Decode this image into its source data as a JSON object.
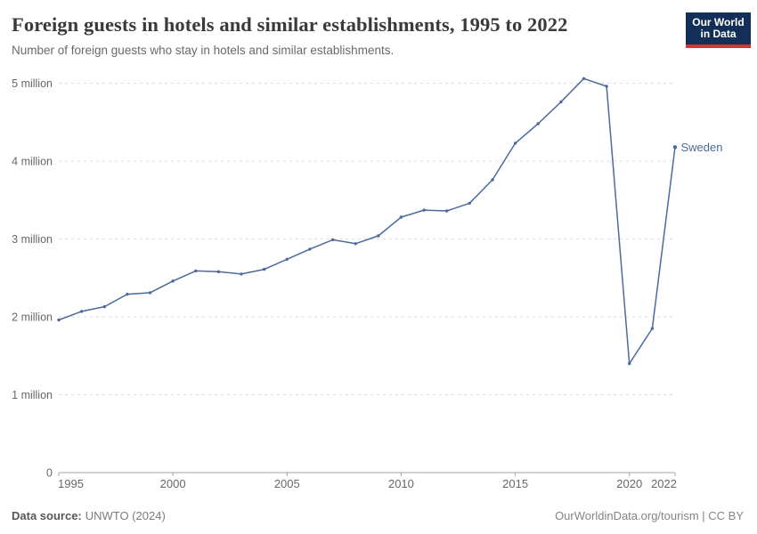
{
  "header": {
    "title": "Foreign guests in hotels and similar establishments, 1995 to 2022",
    "subtitle": "Number of foreign guests who stay in hotels and similar establishments."
  },
  "logo": {
    "line1": "Our World",
    "line2": "in Data",
    "bg_color": "#132f57",
    "accent_color": "#d5362a"
  },
  "footer": {
    "source_label": "Data source:",
    "source_value": "UNWTO (2024)",
    "credit": "OurWorldinData.org/tourism | CC BY"
  },
  "chart_data": {
    "type": "line",
    "title": "Foreign guests in hotels and similar establishments, 1995 to 2022",
    "subtitle": "Number of foreign guests who stay in hotels and similar establishments.",
    "xlabel": "",
    "ylabel": "",
    "xlim": [
      1995,
      2022
    ],
    "ylim_millions": [
      0,
      5.3
    ],
    "grid": "horizontal-dashed",
    "legend_position": "end-of-line-label",
    "x": [
      1995,
      1996,
      1997,
      1998,
      1999,
      2000,
      2001,
      2002,
      2003,
      2004,
      2005,
      2006,
      2007,
      2008,
      2009,
      2010,
      2011,
      2012,
      2013,
      2014,
      2015,
      2016,
      2017,
      2018,
      2019,
      2020,
      2021,
      2022
    ],
    "series": [
      {
        "name": "Sweden",
        "color": "#4C6A9C",
        "values_millions": [
          1.96,
          2.07,
          2.13,
          2.29,
          2.31,
          2.46,
          2.59,
          2.58,
          2.55,
          2.61,
          2.74,
          2.87,
          2.99,
          2.94,
          3.04,
          3.28,
          3.37,
          3.36,
          3.46,
          3.76,
          4.23,
          4.48,
          4.76,
          5.06,
          4.96,
          1.4,
          1.85,
          4.18
        ]
      }
    ],
    "x_ticks": [
      1995,
      2000,
      2005,
      2010,
      2015,
      2020,
      2022
    ],
    "y_ticks": [
      {
        "value": 0,
        "label": "0"
      },
      {
        "value": 1,
        "label": "1 million"
      },
      {
        "value": 2,
        "label": "2 million"
      },
      {
        "value": 3,
        "label": "3 million"
      },
      {
        "value": 4,
        "label": "4 million"
      },
      {
        "value": 5,
        "label": "5 million"
      }
    ],
    "colors": {
      "gridline": "#dcdcdc",
      "axis": "#a5a5a5",
      "tick_text": "#676767"
    }
  }
}
